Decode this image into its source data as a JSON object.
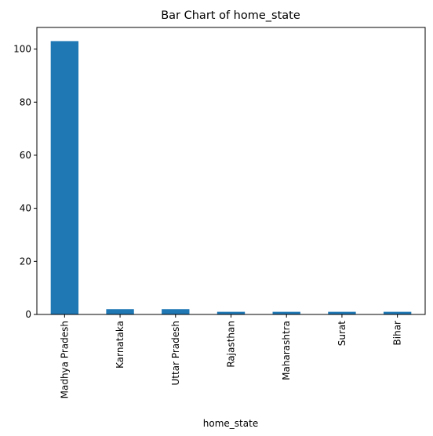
{
  "chart_data": {
    "type": "bar",
    "title": "Bar Chart of home_state",
    "xlabel": "home_state",
    "ylabel": "",
    "categories": [
      "Madhya Pradesh",
      "Karnataka",
      "Uttar Pradesh",
      "Rajasthan",
      "Maharashtra",
      "Surat",
      "Bihar"
    ],
    "values": [
      103,
      2,
      2,
      1,
      1,
      1,
      1
    ],
    "ylim": [
      0,
      108.15
    ],
    "yticks": [
      0,
      20,
      40,
      60,
      80,
      100
    ],
    "bar_color": "#1f77b4",
    "grid": false,
    "legend": "none"
  }
}
